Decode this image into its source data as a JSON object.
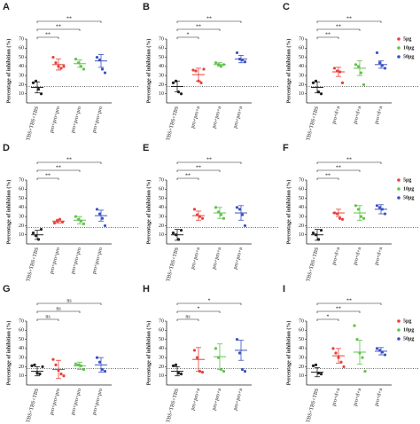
{
  "chart_data": [
    {
      "type": "scatter",
      "title": "A",
      "y_label": "Percentage of inhibition (%)",
      "categories": [
        "TBS+TBS+TBS",
        "pro+pro+pro",
        "pro+pro+pro",
        "pro+pro+pro"
      ],
      "ylim": [
        0,
        70
      ],
      "yticks": [
        10,
        20,
        30,
        40,
        50,
        60,
        70
      ],
      "ref_line": 18,
      "groups": [
        {
          "color": "#222222",
          "points": [
            22,
            24,
            15,
            10
          ],
          "mean": 17,
          "sd": 6
        },
        {
          "color": "#e8403a",
          "points": [
            50,
            44,
            40,
            38,
            40
          ],
          "mean": 42,
          "sd": 6
        },
        {
          "color": "#5fc44b",
          "points": [
            48,
            44,
            40,
            37
          ],
          "mean": 43,
          "sd": 4
        },
        {
          "color": "#3b52c4",
          "points": [
            50,
            47,
            37,
            33
          ],
          "mean": 46,
          "sd": 7
        }
      ],
      "brackets": [
        {
          "from": 0,
          "to": 1,
          "label": "**"
        },
        {
          "from": 0,
          "to": 2,
          "label": "**"
        },
        {
          "from": 0,
          "to": 3,
          "label": "**"
        }
      ]
    },
    {
      "type": "scatter",
      "title": "B",
      "y_label": "Percentage of inhibition (%)",
      "categories": [
        "TBS+TBS+TBS",
        "pro+pro+a",
        "pro+pro+a",
        "pro+pro+a"
      ],
      "ylim": [
        0,
        70
      ],
      "yticks": [
        10,
        20,
        30,
        40,
        50,
        60,
        70
      ],
      "ref_line": 18,
      "groups": [
        {
          "color": "#222222",
          "points": [
            22,
            24,
            12,
            10
          ],
          "mean": 18,
          "sd": 6
        },
        {
          "color": "#e8403a",
          "points": [
            36,
            35,
            24,
            22,
            37
          ],
          "mean": 31,
          "sd": 7
        },
        {
          "color": "#5fc44b",
          "points": [
            44,
            42,
            40,
            42
          ],
          "mean": 42,
          "sd": 2
        },
        {
          "color": "#3b52c4",
          "points": [
            55,
            48,
            47,
            45
          ],
          "mean": 48,
          "sd": 4
        }
      ],
      "brackets": [
        {
          "from": 0,
          "to": 1,
          "label": "*"
        },
        {
          "from": 0,
          "to": 2,
          "label": "**"
        },
        {
          "from": 0,
          "to": 3,
          "label": "**"
        }
      ]
    },
    {
      "type": "scatter",
      "title": "C",
      "y_label": "Percentage of inhibition (%)",
      "categories": [
        "TBS+TBS+TBS",
        "pro+d+a",
        "pro+d+a",
        "pro+d+a"
      ],
      "ylim": [
        0,
        70
      ],
      "yticks": [
        10,
        20,
        30,
        40,
        50,
        60,
        70
      ],
      "ref_line": 18,
      "groups": [
        {
          "color": "#222222",
          "points": [
            22,
            24,
            12,
            10
          ],
          "mean": 17,
          "sd": 6
        },
        {
          "color": "#e8403a",
          "points": [
            38,
            35,
            34,
            22
          ],
          "mean": 34,
          "sd": 5
        },
        {
          "color": "#5fc44b",
          "points": [
            42,
            40,
            33,
            20
          ],
          "mean": 38,
          "sd": 8
        },
        {
          "color": "#3b52c4",
          "points": [
            55,
            44,
            41,
            38
          ],
          "mean": 42,
          "sd": 4
        }
      ],
      "brackets": [
        {
          "from": 0,
          "to": 1,
          "label": "**"
        },
        {
          "from": 0,
          "to": 2,
          "label": "**"
        },
        {
          "from": 0,
          "to": 3,
          "label": "**"
        }
      ],
      "legend": [
        {
          "name": "5μg",
          "color": "#e8403a"
        },
        {
          "name": "10μg",
          "color": "#5fc44b"
        },
        {
          "name": "50μg",
          "color": "#3b52c4"
        }
      ]
    },
    {
      "type": "scatter",
      "title": "D",
      "y_label": "Percentage of inhibition (%)",
      "categories": [
        "TBS+TBS+TBS",
        "pro+pro+pro",
        "pro+pro+pro",
        "pro+pro+pro"
      ],
      "ylim": [
        0,
        70
      ],
      "yticks": [
        10,
        20,
        30,
        40,
        50,
        60,
        70
      ],
      "ref_line": 18,
      "groups": [
        {
          "color": "#222222",
          "points": [
            12,
            9,
            5,
            16
          ],
          "mean": 10,
          "sd": 5
        },
        {
          "color": "#e8403a",
          "points": [
            23,
            25,
            27,
            24
          ],
          "mean": 25,
          "sd": 2
        },
        {
          "color": "#5fc44b",
          "points": [
            30,
            27,
            25,
            22
          ],
          "mean": 26,
          "sd": 4
        },
        {
          "color": "#3b52c4",
          "points": [
            38,
            33,
            28,
            20
          ],
          "mean": 31,
          "sd": 6
        }
      ],
      "brackets": [
        {
          "from": 0,
          "to": 1,
          "label": "**"
        },
        {
          "from": 0,
          "to": 2,
          "label": "**"
        },
        {
          "from": 0,
          "to": 3,
          "label": "**"
        }
      ]
    },
    {
      "type": "scatter",
      "title": "E",
      "y_label": "Percentage of inhibition (%)",
      "categories": [
        "TBS+TBS+TBS",
        "pro+pro+a",
        "pro+pro+a",
        "pro+pro+a"
      ],
      "ylim": [
        0,
        70
      ],
      "yticks": [
        10,
        20,
        30,
        40,
        50,
        60,
        70
      ],
      "ref_line": 18,
      "groups": [
        {
          "color": "#222222",
          "points": [
            12,
            10,
            5,
            15
          ],
          "mean": 10,
          "sd": 6
        },
        {
          "color": "#e8403a",
          "points": [
            38,
            32,
            30,
            28
          ],
          "mean": 31,
          "sd": 5
        },
        {
          "color": "#5fc44b",
          "points": [
            40,
            35,
            32,
            28
          ],
          "mean": 34,
          "sd": 6
        },
        {
          "color": "#3b52c4",
          "points": [
            40,
            38,
            32,
            20
          ],
          "mean": 34,
          "sd": 8
        }
      ],
      "brackets": [
        {
          "from": 0,
          "to": 1,
          "label": "**"
        },
        {
          "from": 0,
          "to": 2,
          "label": "**"
        },
        {
          "from": 0,
          "to": 3,
          "label": "**"
        }
      ]
    },
    {
      "type": "scatter",
      "title": "F",
      "y_label": "Percentage of inhibition (%)",
      "categories": [
        "TBS+TBS+TBS",
        "pro+d+a",
        "pro+d+a",
        "pro+d+a"
      ],
      "ylim": [
        0,
        70
      ],
      "yticks": [
        10,
        20,
        30,
        40,
        50,
        60,
        70
      ],
      "ref_line": 18,
      "groups": [
        {
          "color": "#222222",
          "points": [
            12,
            10,
            5,
            15
          ],
          "mean": 10,
          "sd": 6
        },
        {
          "color": "#e8403a",
          "points": [
            34,
            33,
            28,
            27
          ],
          "mean": 34,
          "sd": 4
        },
        {
          "color": "#5fc44b",
          "points": [
            42,
            38,
            30,
            28
          ],
          "mean": 34,
          "sd": 8
        },
        {
          "color": "#3b52c4",
          "points": [
            42,
            40,
            38,
            33
          ],
          "mean": 38,
          "sd": 5
        }
      ],
      "brackets": [
        {
          "from": 0,
          "to": 1,
          "label": "**"
        },
        {
          "from": 0,
          "to": 2,
          "label": "**"
        },
        {
          "from": 0,
          "to": 3,
          "label": "**"
        }
      ],
      "legend": [
        {
          "name": "5μg",
          "color": "#e8403a"
        },
        {
          "name": "10μg",
          "color": "#5fc44b"
        },
        {
          "name": "50μg",
          "color": "#3b52c4"
        }
      ]
    },
    {
      "type": "scatter",
      "title": "G",
      "y_label": "Percentage of inhibition (%)",
      "categories": [
        "TBS+TBS+TBS",
        "pro+pro+pro",
        "pro+pro+pro",
        "pro+pro+pro"
      ],
      "ylim": [
        0,
        70
      ],
      "yticks": [
        10,
        20,
        30,
        40,
        50,
        60,
        70
      ],
      "ref_line": 18,
      "groups": [
        {
          "color": "#222222",
          "points": [
            21,
            22,
            13,
            12,
            20
          ],
          "mean": 15,
          "sd": 5
        },
        {
          "color": "#e8403a",
          "points": [
            28,
            22,
            16,
            12,
            10
          ],
          "mean": 17,
          "sd": 10
        },
        {
          "color": "#5fc44b",
          "points": [
            23,
            22,
            21,
            17
          ],
          "mean": 21,
          "sd": 4
        },
        {
          "color": "#3b52c4",
          "points": [
            30,
            25,
            17,
            15
          ],
          "mean": 22,
          "sd": 8
        }
      ],
      "brackets": [
        {
          "from": 0,
          "to": 1,
          "label": "ns"
        },
        {
          "from": 0,
          "to": 2,
          "label": "ns"
        },
        {
          "from": 0,
          "to": 3,
          "label": "ns"
        }
      ]
    },
    {
      "type": "scatter",
      "title": "H",
      "y_label": "Percentage of inhibition (%)",
      "categories": [
        "TBS+TBS+TBS",
        "pro+pro+a",
        "pro+pro+a",
        "pro+pro+a"
      ],
      "ylim": [
        0,
        70
      ],
      "yticks": [
        10,
        20,
        30,
        40,
        50,
        60,
        70
      ],
      "ref_line": 18,
      "groups": [
        {
          "color": "#222222",
          "points": [
            21,
            22,
            13,
            12
          ],
          "mean": 15,
          "sd": 5
        },
        {
          "color": "#e8403a",
          "points": [
            38,
            30,
            15,
            14
          ],
          "mean": 28,
          "sd": 13
        },
        {
          "color": "#5fc44b",
          "points": [
            40,
            30,
            17,
            15
          ],
          "mean": 31,
          "sd": 14
        },
        {
          "color": "#3b52c4",
          "points": [
            50,
            35,
            17,
            15
          ],
          "mean": 38,
          "sd": 11
        }
      ],
      "brackets": [
        {
          "from": 0,
          "to": 1,
          "label": "ns"
        },
        {
          "from": 0,
          "to": 2,
          "label": "*"
        },
        {
          "from": 0,
          "to": 3,
          "label": "*"
        }
      ]
    },
    {
      "type": "scatter",
      "title": "I",
      "y_label": "Percentage of inhibition (%)",
      "categories": [
        "TBS+TBS+TBS",
        "pro+d+a",
        "pro+d+a",
        "pro+d+a"
      ],
      "ylim": [
        0,
        70
      ],
      "yticks": [
        10,
        20,
        30,
        40,
        50,
        60,
        70
      ],
      "ref_line": 18,
      "groups": [
        {
          "color": "#222222",
          "points": [
            21,
            22,
            13,
            12
          ],
          "mean": 14,
          "sd": 5
        },
        {
          "color": "#e8403a",
          "points": [
            40,
            35,
            30,
            25,
            20
          ],
          "mean": 32,
          "sd": 8
        },
        {
          "color": "#5fc44b",
          "points": [
            65,
            50,
            35,
            30,
            15
          ],
          "mean": 36,
          "sd": 13
        },
        {
          "color": "#3b52c4",
          "points": [
            40,
            38,
            36,
            33
          ],
          "mean": 37,
          "sd": 4
        }
      ],
      "brackets": [
        {
          "from": 0,
          "to": 1,
          "label": "*"
        },
        {
          "from": 0,
          "to": 2,
          "label": "**"
        },
        {
          "from": 0,
          "to": 3,
          "label": "**"
        }
      ],
      "legend": [
        {
          "name": "5μg",
          "color": "#e8403a"
        },
        {
          "name": "10μg",
          "color": "#5fc44b"
        },
        {
          "name": "50μg",
          "color": "#3b52c4"
        }
      ]
    }
  ]
}
